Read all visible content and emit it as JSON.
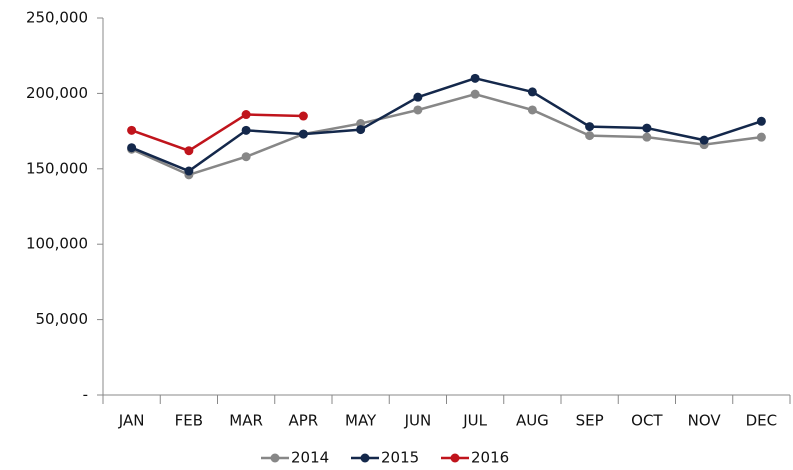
{
  "chart_data": {
    "type": "line",
    "categories": [
      "JAN",
      "FEB",
      "MAR",
      "APR",
      "MAY",
      "JUN",
      "JUL",
      "AUG",
      "SEP",
      "OCT",
      "NOV",
      "DEC"
    ],
    "series": [
      {
        "name": "2014",
        "color": "#878787",
        "values": [
          163000,
          146000,
          158000,
          173000,
          180000,
          189000,
          199500,
          189000,
          172000,
          171000,
          166000,
          171000
        ]
      },
      {
        "name": "2015",
        "color": "#14284b",
        "values": [
          164000,
          148500,
          175500,
          173000,
          176000,
          197500,
          210000,
          201000,
          178000,
          177000,
          169000,
          181500
        ]
      },
      {
        "name": "2016",
        "color": "#c0141c",
        "values": [
          175500,
          162000,
          186000,
          185000,
          null,
          null,
          null,
          null,
          null,
          null,
          null,
          null
        ]
      }
    ],
    "ylim": [
      0,
      250000
    ],
    "yticks": [
      {
        "value": 0,
        "label": "-"
      },
      {
        "value": 50000,
        "label": "50,000"
      },
      {
        "value": 100000,
        "label": "100,000"
      },
      {
        "value": 150000,
        "label": "150,000"
      },
      {
        "value": 200000,
        "label": "200,000"
      },
      {
        "value": 250000,
        "label": "250,000"
      }
    ],
    "grid": false,
    "legend": "bottom"
  }
}
